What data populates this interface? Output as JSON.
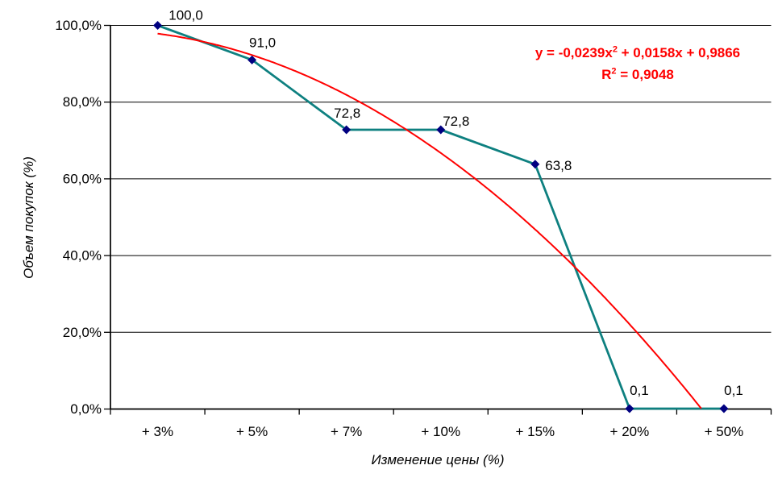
{
  "chart_data": {
    "type": "line",
    "title": "",
    "xlabel": "Изменение цены (%)",
    "ylabel": "Объем покупок (%)",
    "categories": [
      "+ 3%",
      "+ 5%",
      "+ 7%",
      "+ 10%",
      "+ 15%",
      "+ 20%",
      "+ 50%"
    ],
    "series": [
      {
        "name": "Объем покупок",
        "values": [
          100.0,
          91.0,
          72.8,
          72.8,
          63.8,
          0.1,
          0.1
        ],
        "point_labels": [
          "100,0",
          "91,0",
          "72,8",
          "72,8",
          "63,8",
          "0,1",
          "0,1"
        ],
        "line_color": "#0e8080",
        "marker_color": "#000080",
        "marker": "diamond"
      }
    ],
    "trendline": {
      "kind": "polynomial-order-2",
      "coefficients": {
        "a": -0.0239,
        "b": 0.0158,
        "c": 0.9866
      },
      "r_squared": 0.9048,
      "color": "#ff0000",
      "label": {
        "eq_before_sup": "y = -0,0239x",
        "eq_sup": "2",
        "eq_after_sup": " + 0,0158x + 0,9866",
        "r2_before_sup": "R",
        "r2_sup": "2",
        "r2_after_sup": " = 0,9048"
      }
    },
    "y_ticks": [
      0,
      20,
      40,
      60,
      80,
      100
    ],
    "y_tick_labels": [
      "0,0%",
      "20,0%",
      "40,0%",
      "60,0%",
      "80,0%",
      "100,0%"
    ],
    "ylim": [
      0,
      100
    ],
    "grid": "horizontal-only",
    "legend": "none",
    "axis_color": "#000000",
    "text_color": "#000000",
    "background": "#ffffff"
  }
}
